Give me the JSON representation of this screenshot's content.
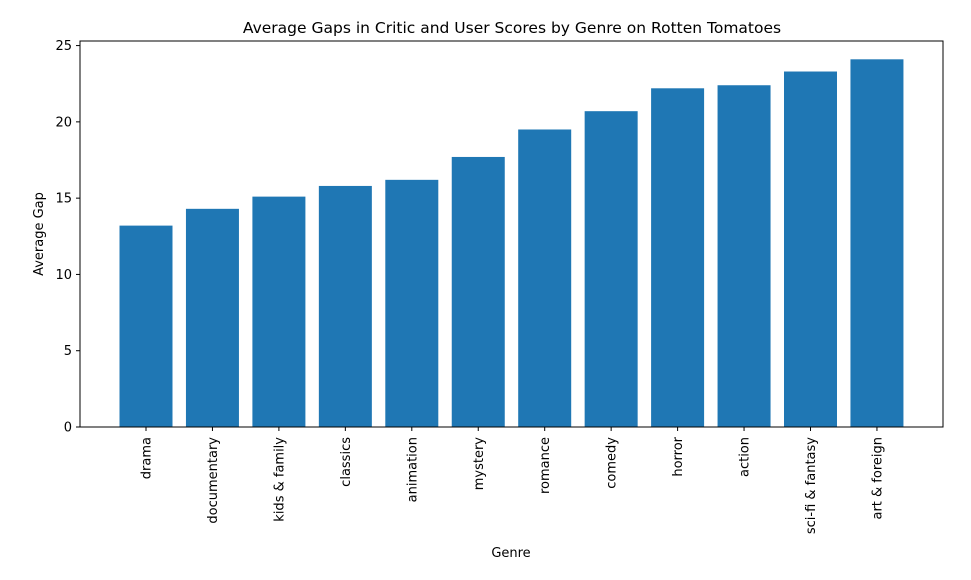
{
  "chart_data": {
    "type": "bar",
    "title": "Average Gaps in Critic and User Scores by Genre on Rotten Tomatoes",
    "xlabel": "Genre",
    "ylabel": "Average Gap",
    "categories": [
      "drama",
      "documentary",
      "kids & family",
      "classics",
      "animation",
      "mystery",
      "romance",
      "comedy",
      "horror",
      "action",
      "sci-fi & fantasy",
      "art & foreign"
    ],
    "values": [
      13.2,
      14.3,
      15.1,
      15.8,
      16.2,
      17.7,
      19.5,
      20.7,
      22.2,
      22.4,
      23.3,
      24.1
    ],
    "ylim": [
      0,
      25.3
    ],
    "yticks": [
      0,
      5,
      10,
      15,
      20,
      25
    ],
    "bar_color": "#1f77b4",
    "grid": false,
    "legend": "none"
  }
}
